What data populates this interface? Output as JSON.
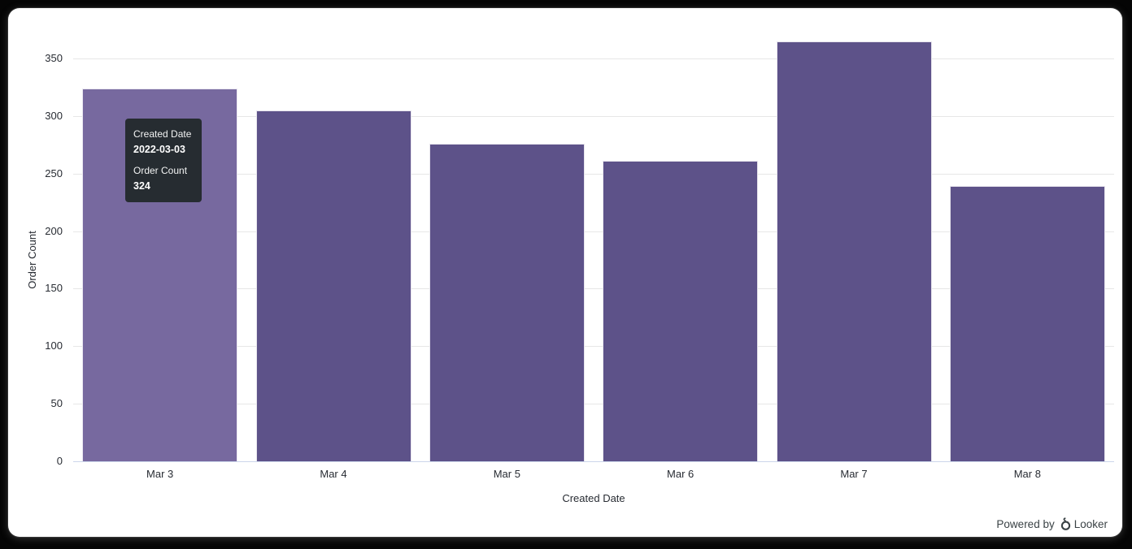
{
  "window": {
    "background": "#ffffff",
    "frame": "#050505"
  },
  "chart_data": {
    "type": "bar",
    "title": "",
    "categories": [
      "Mar 3",
      "Mar 4",
      "Mar 5",
      "Mar 6",
      "Mar 7",
      "Mar 8"
    ],
    "series": [
      {
        "name": "Order Count",
        "values": [
          324,
          305,
          276,
          261,
          365,
          239
        ]
      }
    ],
    "xlabel": "Created Date",
    "ylabel": "Order Count",
    "ylim": [
      0,
      350
    ],
    "yticks": [
      0,
      50,
      100,
      150,
      200,
      250,
      300,
      350
    ],
    "grid": "horizontal-only",
    "legend": "none",
    "bar_color": "#5d5289",
    "bar_hover_color": "#77699f",
    "hovered_index": 0,
    "gridline_color": "#e7e7e7",
    "axis_line_color": "#ccd6eb",
    "label_color": "#282c33"
  },
  "tooltip": {
    "dimension_label": "Created Date",
    "dimension_value": "2022-03-03",
    "measure_label": "Order Count",
    "measure_value": "324",
    "background": "#262c31",
    "text_color": "#ffffff"
  },
  "footer": {
    "powered_by": "Powered by",
    "brand": "Looker",
    "logo_icon": "looker-logo-icon",
    "text_color": "#3a4245"
  }
}
